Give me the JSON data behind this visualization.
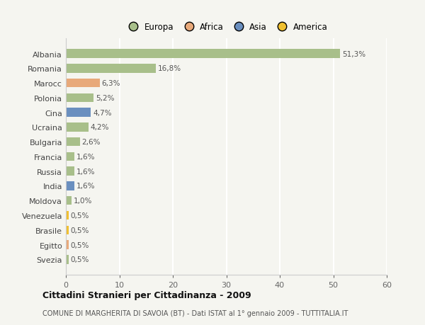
{
  "countries": [
    "Albania",
    "Romania",
    "Marocc",
    "Polonia",
    "Cina",
    "Ucraina",
    "Bulgaria",
    "Francia",
    "Russia",
    "India",
    "Moldova",
    "Venezuela",
    "Brasile",
    "Egitto",
    "Svezia"
  ],
  "values": [
    51.3,
    16.8,
    6.3,
    5.2,
    4.7,
    4.2,
    2.6,
    1.6,
    1.6,
    1.6,
    1.0,
    0.5,
    0.5,
    0.5,
    0.5
  ],
  "value_labels": [
    "51,3%",
    "16,8%",
    "6,3%",
    "5,2%",
    "4,7%",
    "4,2%",
    "2,6%",
    "1,6%",
    "1,6%",
    "1,6%",
    "1,0%",
    "0,5%",
    "0,5%",
    "0,5%",
    "0,5%"
  ],
  "regions": [
    "Europa",
    "Europa",
    "Africa",
    "Europa",
    "Asia",
    "Europa",
    "Europa",
    "Europa",
    "Europa",
    "Asia",
    "Europa",
    "America",
    "America",
    "Africa",
    "Europa"
  ],
  "region_colors": {
    "Europa": "#a8bf8a",
    "Africa": "#e8a97a",
    "Asia": "#6a8fbf",
    "America": "#f0c030"
  },
  "legend_labels": [
    "Europa",
    "Africa",
    "Asia",
    "America"
  ],
  "legend_colors": [
    "#a8bf8a",
    "#e8a97a",
    "#6a8fbf",
    "#f0c030"
  ],
  "xlim": [
    0,
    60
  ],
  "xticks": [
    0,
    10,
    20,
    30,
    40,
    50,
    60
  ],
  "title": "Cittadini Stranieri per Cittadinanza - 2009",
  "subtitle": "COMUNE DI MARGHERITA DI SAVOIA (BT) - Dati ISTAT al 1° gennaio 2009 - TUTTITALIA.IT",
  "bg_color": "#f5f5f0",
  "bar_height": 0.6,
  "grid_color": "#ffffff"
}
